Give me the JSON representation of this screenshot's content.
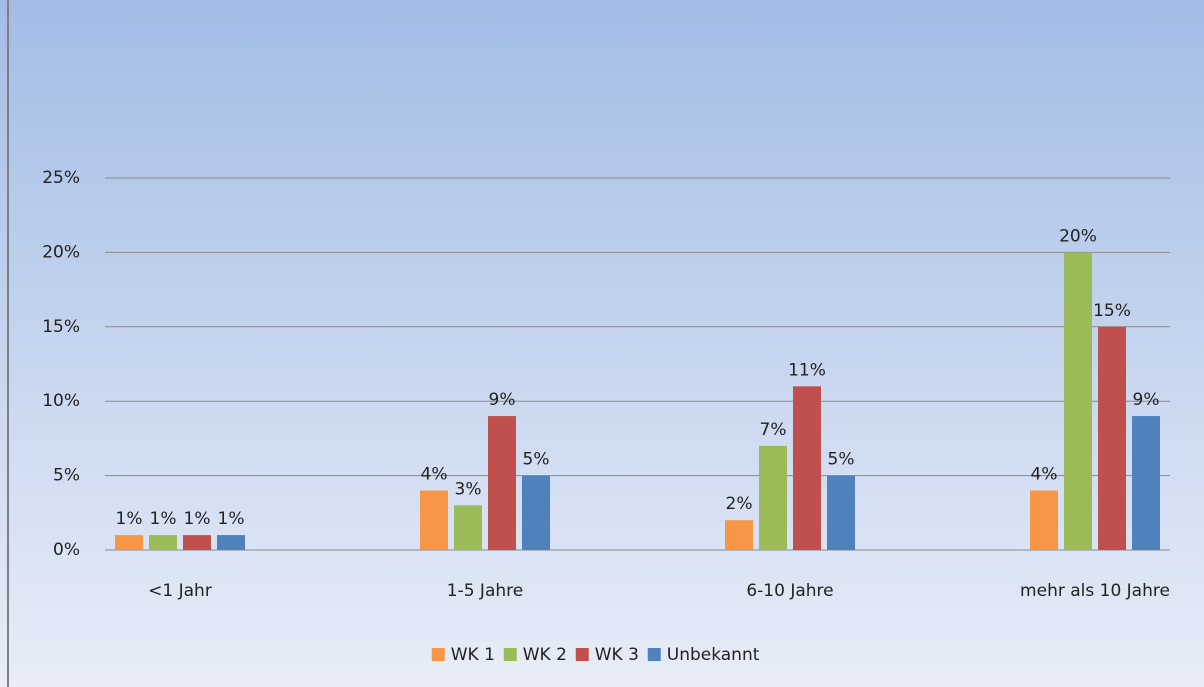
{
  "chart_data": {
    "type": "bar",
    "categories": [
      "<1 Jahr",
      "1-5 Jahre",
      "6-10 Jahre",
      "mehr als 10 Jahre"
    ],
    "series": [
      {
        "name": "WK 1",
        "color": "#f79646",
        "values": [
          1,
          4,
          2,
          4
        ],
        "value_labels": [
          "1%",
          "4%",
          "2%",
          "4%"
        ]
      },
      {
        "name": "WK 2",
        "color": "#9bbb59",
        "values": [
          1,
          3,
          7,
          20
        ],
        "value_labels": [
          "1%",
          "3%",
          "7%",
          "20%"
        ]
      },
      {
        "name": "WK 3",
        "color": "#c0504d",
        "values": [
          1,
          9,
          11,
          15
        ],
        "value_labels": [
          "1%",
          "9%",
          "11%",
          "15%"
        ]
      },
      {
        "name": "Unbekannt",
        "color": "#4f81bd",
        "values": [
          1,
          5,
          5,
          9
        ],
        "value_labels": [
          "1%",
          "5%",
          "5%",
          "9%"
        ]
      }
    ],
    "ylim": [
      0,
      25
    ],
    "yticks": [
      {
        "value": 0,
        "label": "0%"
      },
      {
        "value": 5,
        "label": "5%"
      },
      {
        "value": 10,
        "label": "10%"
      },
      {
        "value": 15,
        "label": "15%"
      },
      {
        "value": 20,
        "label": "20%"
      },
      {
        "value": 25,
        "label": "25%"
      }
    ],
    "grid": true,
    "legend": "bottom"
  }
}
